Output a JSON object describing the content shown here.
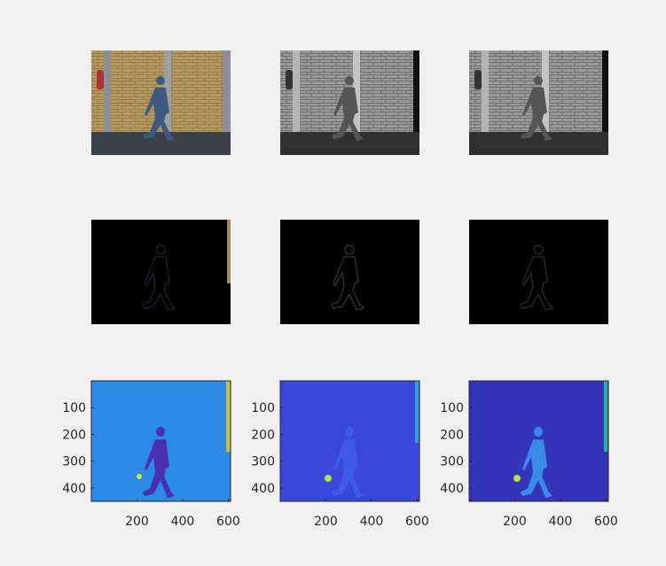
{
  "axes": [
    {
      "xlim": [
        0,
        610
      ],
      "ylim": [
        0,
        450
      ],
      "xticks": [
        200,
        400,
        600
      ],
      "yticks": [
        100,
        200,
        300,
        400
      ]
    },
    {
      "xlim": [
        0,
        610
      ],
      "ylim": [
        0,
        450
      ],
      "xticks": [
        200,
        400,
        600
      ],
      "yticks": [
        100,
        200,
        300,
        400
      ]
    },
    {
      "xlim": [
        0,
        610
      ],
      "ylim": [
        0,
        450
      ],
      "xticks": [
        200,
        400,
        600
      ],
      "yticks": [
        100,
        200,
        300,
        400
      ]
    }
  ]
}
